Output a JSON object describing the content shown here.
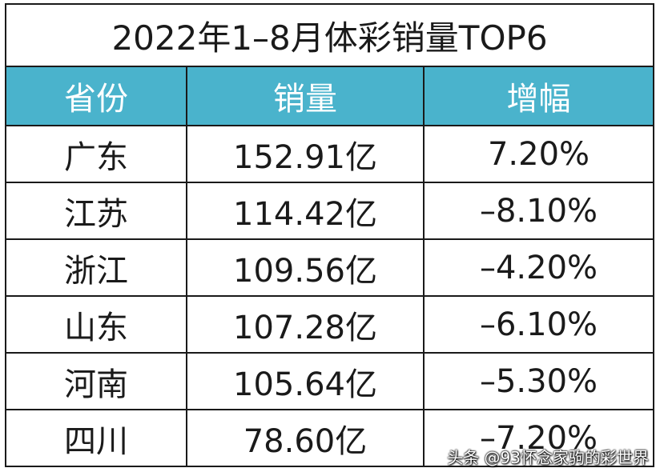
{
  "title": "2022年1–8月体彩销量TOP6",
  "headers": [
    "省份",
    "销量",
    "增幅"
  ],
  "rows": [
    {
      "province": "广东",
      "sales": "152.91亿",
      "growth": "7.20%"
    },
    {
      "province": "江苏",
      "sales": "114.42亿",
      "growth": "–8.10%"
    },
    {
      "province": "浙江",
      "sales": "109.56亿",
      "growth": "–4.20%"
    },
    {
      "province": "山东",
      "sales": "107.28亿",
      "growth": "–6.10%"
    },
    {
      "province": "河南",
      "sales": "105.64亿",
      "growth": "–5.30%"
    },
    {
      "province": "四川",
      "sales": "78.60亿",
      "growth": "–7.20%"
    }
  ],
  "watermark": "头条 @93怀念家驹的彩世界",
  "colors": {
    "header_bg": "#4ab3cc",
    "border": "#1a1a1a"
  }
}
